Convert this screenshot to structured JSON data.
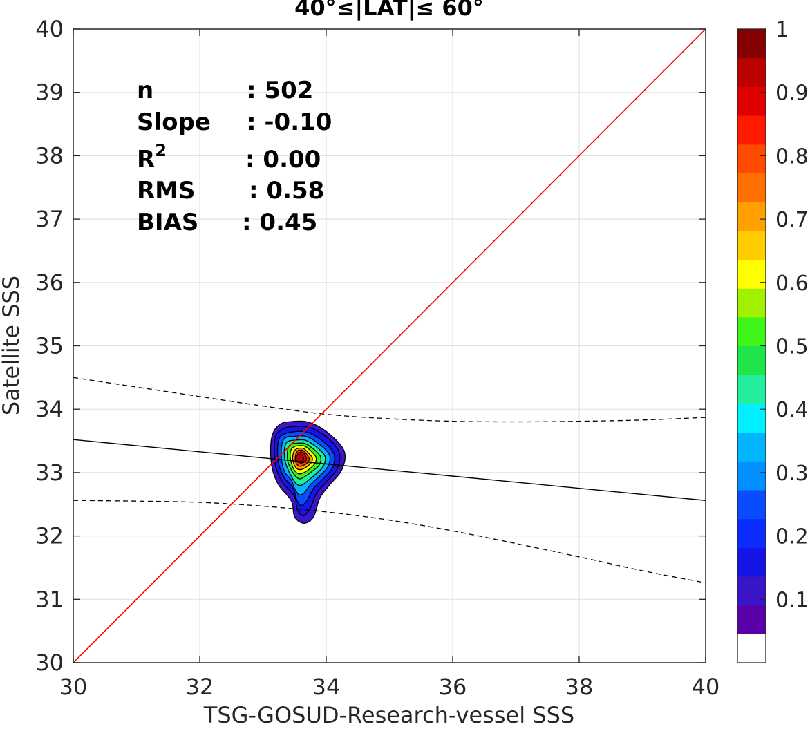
{
  "chart_data": {
    "type": "contour-scatter",
    "title": "40°≤|LAT|≤ 60°",
    "xlabel": "TSG-GOSUD-Research-vessel SSS",
    "ylabel": "Satellite SSS",
    "xlim": [
      30,
      40
    ],
    "ylim": [
      30,
      40
    ],
    "xticks": [
      30,
      32,
      34,
      36,
      38,
      40
    ],
    "yticks": [
      30,
      31,
      32,
      33,
      34,
      35,
      36,
      37,
      38,
      39,
      40
    ],
    "grid": true,
    "stats": [
      {
        "label": "n",
        "value": ": 502"
      },
      {
        "label": "Slope",
        "value": ": -0.10"
      },
      {
        "label": "R",
        "sup": "2",
        "value": ": 0.00"
      },
      {
        "label": "RMS",
        "value": ": 0.58"
      },
      {
        "label": "BIAS",
        "value": ": 0.45"
      }
    ],
    "identity_line": {
      "color": "#ff0000",
      "points": [
        [
          30,
          30
        ],
        [
          40,
          40
        ]
      ]
    },
    "fit_line": {
      "color": "#000000",
      "points": [
        [
          30,
          33.52
        ],
        [
          40,
          32.56
        ]
      ]
    },
    "upper_bound": {
      "style": "dashed",
      "points": [
        [
          30,
          34.5
        ],
        [
          31,
          34.35
        ],
        [
          32,
          34.2
        ],
        [
          33,
          34.05
        ],
        [
          34,
          33.92
        ],
        [
          35,
          33.85
        ],
        [
          36,
          33.81
        ],
        [
          37,
          33.8
        ],
        [
          38,
          33.81
        ],
        [
          39,
          33.83
        ],
        [
          40,
          33.87
        ]
      ]
    },
    "lower_bound": {
      "style": "dashed",
      "points": [
        [
          30,
          32.56
        ],
        [
          31,
          32.55
        ],
        [
          32,
          32.53
        ],
        [
          33,
          32.47
        ],
        [
          34,
          32.38
        ],
        [
          35,
          32.25
        ],
        [
          36,
          32.08
        ],
        [
          37,
          31.88
        ],
        [
          38,
          31.67
        ],
        [
          39,
          31.45
        ],
        [
          40,
          31.26
        ]
      ]
    },
    "density_peak": {
      "x": 33.58,
      "y": 33.22
    },
    "contour_levels": [
      {
        "level": 0.05,
        "color": "#3a16c8",
        "points": [
          [
            33.4,
            33.8
          ],
          [
            33.7,
            33.8
          ],
          [
            34.0,
            33.65
          ],
          [
            34.28,
            33.35
          ],
          [
            34.25,
            33.05
          ],
          [
            34.05,
            32.8
          ],
          [
            33.9,
            32.6
          ],
          [
            33.8,
            32.3
          ],
          [
            33.65,
            32.2
          ],
          [
            33.5,
            32.3
          ],
          [
            33.45,
            32.55
          ],
          [
            33.25,
            32.8
          ],
          [
            33.15,
            33.05
          ],
          [
            33.12,
            33.35
          ],
          [
            33.15,
            33.6
          ],
          [
            33.25,
            33.75
          ]
        ]
      },
      {
        "level": 0.1,
        "color": "#1515e8",
        "points": [
          [
            33.42,
            33.72
          ],
          [
            33.7,
            33.72
          ],
          [
            33.98,
            33.58
          ],
          [
            34.2,
            33.33
          ],
          [
            34.18,
            33.07
          ],
          [
            34.0,
            32.85
          ],
          [
            33.85,
            32.68
          ],
          [
            33.74,
            32.42
          ],
          [
            33.63,
            32.32
          ],
          [
            33.54,
            32.42
          ],
          [
            33.5,
            32.62
          ],
          [
            33.3,
            32.86
          ],
          [
            33.2,
            33.1
          ],
          [
            33.18,
            33.36
          ],
          [
            33.2,
            33.58
          ],
          [
            33.3,
            33.68
          ]
        ]
      },
      {
        "level": 0.2,
        "color": "#0a4cff",
        "points": [
          [
            33.45,
            33.64
          ],
          [
            33.69,
            33.64
          ],
          [
            33.94,
            33.5
          ],
          [
            34.12,
            33.3
          ],
          [
            34.1,
            33.08
          ],
          [
            33.95,
            32.9
          ],
          [
            33.8,
            32.75
          ],
          [
            33.69,
            32.55
          ],
          [
            33.6,
            32.48
          ],
          [
            33.53,
            32.58
          ],
          [
            33.48,
            32.75
          ],
          [
            33.33,
            32.93
          ],
          [
            33.25,
            33.13
          ],
          [
            33.23,
            33.37
          ],
          [
            33.26,
            33.55
          ],
          [
            33.34,
            33.61
          ]
        ]
      },
      {
        "level": 0.3,
        "color": "#00b4ff",
        "points": [
          [
            33.47,
            33.57
          ],
          [
            33.68,
            33.57
          ],
          [
            33.9,
            33.44
          ],
          [
            34.05,
            33.28
          ],
          [
            34.03,
            33.1
          ],
          [
            33.9,
            32.95
          ],
          [
            33.76,
            32.82
          ],
          [
            33.65,
            32.68
          ],
          [
            33.57,
            32.65
          ],
          [
            33.5,
            32.75
          ],
          [
            33.45,
            32.88
          ],
          [
            33.35,
            33.0
          ],
          [
            33.3,
            33.16
          ],
          [
            33.29,
            33.37
          ],
          [
            33.32,
            33.51
          ],
          [
            33.38,
            33.56
          ]
        ]
      },
      {
        "level": 0.4,
        "color": "#22ee9e",
        "points": [
          [
            33.49,
            33.51
          ],
          [
            33.67,
            33.51
          ],
          [
            33.85,
            33.4
          ],
          [
            33.98,
            33.26
          ],
          [
            33.96,
            33.11
          ],
          [
            33.85,
            32.99
          ],
          [
            33.72,
            32.88
          ],
          [
            33.61,
            32.8
          ],
          [
            33.53,
            32.82
          ],
          [
            33.46,
            32.92
          ],
          [
            33.4,
            33.04
          ],
          [
            33.35,
            33.18
          ],
          [
            33.34,
            33.37
          ],
          [
            33.37,
            33.47
          ],
          [
            33.42,
            33.5
          ]
        ]
      },
      {
        "level": 0.5,
        "color": "#3ef51a",
        "points": [
          [
            33.51,
            33.46
          ],
          [
            33.66,
            33.46
          ],
          [
            33.8,
            33.37
          ],
          [
            33.91,
            33.25
          ],
          [
            33.89,
            33.12
          ],
          [
            33.79,
            33.03
          ],
          [
            33.68,
            32.95
          ],
          [
            33.58,
            32.9
          ],
          [
            33.5,
            32.96
          ],
          [
            33.44,
            33.06
          ],
          [
            33.39,
            33.19
          ],
          [
            33.39,
            33.36
          ],
          [
            33.42,
            33.43
          ],
          [
            33.46,
            33.46
          ]
        ]
      },
      {
        "level": 0.6,
        "color": "#ffff00",
        "points": [
          [
            33.53,
            33.42
          ],
          [
            33.65,
            33.42
          ],
          [
            33.76,
            33.34
          ],
          [
            33.84,
            33.24
          ],
          [
            33.82,
            33.14
          ],
          [
            33.74,
            33.06
          ],
          [
            33.65,
            33.0
          ],
          [
            33.56,
            32.98
          ],
          [
            33.49,
            33.05
          ],
          [
            33.45,
            33.15
          ],
          [
            33.43,
            33.26
          ],
          [
            33.44,
            33.35
          ],
          [
            33.48,
            33.4
          ]
        ]
      },
      {
        "level": 0.7,
        "color": "#ffa000",
        "points": [
          [
            33.55,
            33.38
          ],
          [
            33.64,
            33.38
          ],
          [
            33.72,
            33.31
          ],
          [
            33.78,
            33.23
          ],
          [
            33.76,
            33.15
          ],
          [
            33.69,
            33.09
          ],
          [
            33.61,
            33.05
          ],
          [
            33.54,
            33.06
          ],
          [
            33.49,
            33.13
          ],
          [
            33.47,
            33.22
          ],
          [
            33.48,
            33.31
          ],
          [
            33.51,
            33.36
          ]
        ]
      },
      {
        "level": 0.8,
        "color": "#ff4a00",
        "points": [
          [
            33.56,
            33.35
          ],
          [
            33.63,
            33.35
          ],
          [
            33.69,
            33.29
          ],
          [
            33.73,
            33.22
          ],
          [
            33.71,
            33.16
          ],
          [
            33.65,
            33.12
          ],
          [
            33.58,
            33.1
          ],
          [
            33.53,
            33.14
          ],
          [
            33.51,
            33.21
          ],
          [
            33.52,
            33.29
          ],
          [
            33.54,
            33.33
          ]
        ]
      },
      {
        "level": 0.9,
        "color": "#e00000",
        "points": [
          [
            33.57,
            33.32
          ],
          [
            33.63,
            33.32
          ],
          [
            33.67,
            33.27
          ],
          [
            33.69,
            33.21
          ],
          [
            33.66,
            33.17
          ],
          [
            33.6,
            33.15
          ],
          [
            33.55,
            33.18
          ],
          [
            33.54,
            33.24
          ],
          [
            33.55,
            33.3
          ]
        ]
      }
    ],
    "colorbar": {
      "min": 0,
      "max": 1,
      "ticks": [
        0.1,
        0.2,
        0.3,
        0.4,
        0.5,
        0.6,
        0.7,
        0.8,
        0.9,
        1
      ],
      "tick_labels": [
        "0.1",
        "0.2",
        "0.3",
        "0.4",
        "0.5",
        "0.6",
        "0.7",
        "0.8",
        "0.9",
        "1"
      ],
      "colors": [
        "#ffffff",
        "#5a00a8",
        "#3a16c8",
        "#1515e8",
        "#0a2cff",
        "#0a4cff",
        "#0090ff",
        "#00b4ff",
        "#00f0ff",
        "#22ee9e",
        "#1fe54a",
        "#3ef51a",
        "#a0f000",
        "#ffff00",
        "#ffcc00",
        "#ffa000",
        "#ff7000",
        "#ff4a00",
        "#ff1a00",
        "#e00000",
        "#bb0000",
        "#850000"
      ]
    }
  }
}
